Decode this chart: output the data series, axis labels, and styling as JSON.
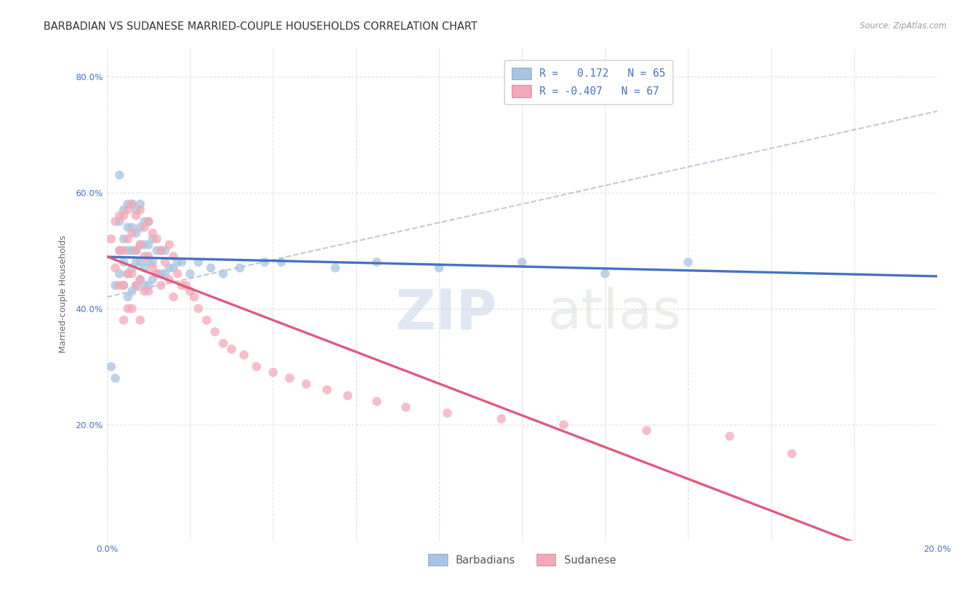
{
  "title": "BARBADIAN VS SUDANESE MARRIED-COUPLE HOUSEHOLDS CORRELATION CHART",
  "source": "Source: ZipAtlas.com",
  "ylabel": "Married-couple Households",
  "xlim": [
    0.0,
    0.2
  ],
  "ylim": [
    0.0,
    0.85
  ],
  "x_ticks": [
    0.0,
    0.02,
    0.04,
    0.06,
    0.08,
    0.1,
    0.12,
    0.14,
    0.16,
    0.18,
    0.2
  ],
  "y_ticks": [
    0.0,
    0.2,
    0.4,
    0.6,
    0.8
  ],
  "barbadian_color": "#a8c4e0",
  "sudanese_color": "#f4a8b8",
  "barbadian_line_color": "#4472c4",
  "sudanese_line_color": "#e05a7a",
  "dashed_line_color": "#b8c8d8",
  "legend_R_barbadian": "R =   0.172",
  "legend_N_barbadian": "N = 65",
  "legend_R_sudanese": "R = -0.407",
  "legend_N_sudanese": "N = 67",
  "background_color": "#ffffff",
  "grid_color": "#dddddd",
  "barbadian_x": [
    0.001,
    0.002,
    0.002,
    0.003,
    0.003,
    0.003,
    0.003,
    0.004,
    0.004,
    0.004,
    0.004,
    0.005,
    0.005,
    0.005,
    0.005,
    0.005,
    0.006,
    0.006,
    0.006,
    0.006,
    0.006,
    0.007,
    0.007,
    0.007,
    0.007,
    0.007,
    0.008,
    0.008,
    0.008,
    0.008,
    0.008,
    0.009,
    0.009,
    0.009,
    0.009,
    0.01,
    0.01,
    0.01,
    0.01,
    0.011,
    0.011,
    0.011,
    0.012,
    0.012,
    0.013,
    0.013,
    0.014,
    0.014,
    0.015,
    0.016,
    0.017,
    0.018,
    0.02,
    0.022,
    0.025,
    0.028,
    0.032,
    0.038,
    0.042,
    0.055,
    0.065,
    0.08,
    0.1,
    0.12,
    0.14
  ],
  "barbadian_y": [
    0.3,
    0.28,
    0.44,
    0.46,
    0.5,
    0.55,
    0.63,
    0.44,
    0.48,
    0.52,
    0.57,
    0.42,
    0.46,
    0.5,
    0.54,
    0.58,
    0.43,
    0.47,
    0.5,
    0.54,
    0.58,
    0.44,
    0.48,
    0.5,
    0.53,
    0.57,
    0.45,
    0.48,
    0.51,
    0.54,
    0.58,
    0.44,
    0.47,
    0.51,
    0.55,
    0.44,
    0.48,
    0.51,
    0.55,
    0.45,
    0.48,
    0.52,
    0.46,
    0.5,
    0.46,
    0.5,
    0.46,
    0.5,
    0.47,
    0.47,
    0.48,
    0.48,
    0.46,
    0.48,
    0.47,
    0.46,
    0.47,
    0.48,
    0.48,
    0.47,
    0.48,
    0.47,
    0.48,
    0.46,
    0.48
  ],
  "sudanese_x": [
    0.001,
    0.002,
    0.002,
    0.003,
    0.003,
    0.003,
    0.004,
    0.004,
    0.004,
    0.004,
    0.005,
    0.005,
    0.005,
    0.005,
    0.006,
    0.006,
    0.006,
    0.006,
    0.007,
    0.007,
    0.007,
    0.008,
    0.008,
    0.008,
    0.008,
    0.009,
    0.009,
    0.009,
    0.01,
    0.01,
    0.01,
    0.011,
    0.011,
    0.012,
    0.012,
    0.013,
    0.013,
    0.014,
    0.015,
    0.015,
    0.016,
    0.016,
    0.017,
    0.018,
    0.019,
    0.02,
    0.021,
    0.022,
    0.024,
    0.026,
    0.028,
    0.03,
    0.033,
    0.036,
    0.04,
    0.044,
    0.048,
    0.053,
    0.058,
    0.065,
    0.072,
    0.082,
    0.095,
    0.11,
    0.13,
    0.15,
    0.165
  ],
  "sudanese_y": [
    0.52,
    0.55,
    0.47,
    0.56,
    0.5,
    0.44,
    0.56,
    0.5,
    0.44,
    0.38,
    0.57,
    0.52,
    0.46,
    0.4,
    0.58,
    0.53,
    0.46,
    0.4,
    0.56,
    0.5,
    0.44,
    0.57,
    0.51,
    0.45,
    0.38,
    0.54,
    0.49,
    0.43,
    0.55,
    0.49,
    0.43,
    0.53,
    0.47,
    0.52,
    0.46,
    0.5,
    0.44,
    0.48,
    0.51,
    0.45,
    0.49,
    0.42,
    0.46,
    0.44,
    0.44,
    0.43,
    0.42,
    0.4,
    0.38,
    0.36,
    0.34,
    0.33,
    0.32,
    0.3,
    0.29,
    0.28,
    0.27,
    0.26,
    0.25,
    0.24,
    0.23,
    0.22,
    0.21,
    0.2,
    0.19,
    0.18,
    0.15
  ],
  "watermark_zip": "ZIP",
  "watermark_atlas": "atlas",
  "title_fontsize": 11,
  "axis_label_fontsize": 9,
  "tick_fontsize": 9,
  "legend_fontsize": 11
}
